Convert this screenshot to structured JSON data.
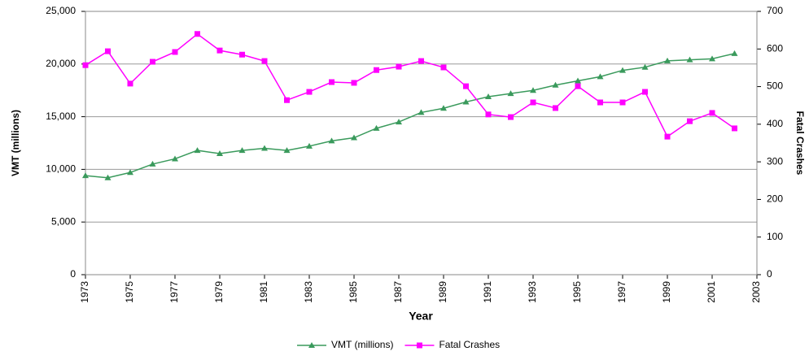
{
  "chart_data": {
    "type": "line",
    "x": [
      1973,
      1974,
      1975,
      1976,
      1977,
      1978,
      1979,
      1980,
      1981,
      1982,
      1983,
      1984,
      1985,
      1986,
      1987,
      1988,
      1989,
      1990,
      1991,
      1992,
      1993,
      1994,
      1995,
      1996,
      1997,
      1998,
      1999,
      2000,
      2001,
      2002
    ],
    "series": [
      {
        "name": "VMT (millions)",
        "color": "#3a9a5c",
        "marker": "triangle",
        "values": [
          9400,
          9200,
          9700,
          10500,
          11000,
          11800,
          11500,
          11800,
          12000,
          11800,
          12200,
          12700,
          13000,
          13900,
          14500,
          15400,
          15800,
          16400,
          16900,
          17200,
          17500,
          18000,
          18400,
          18800,
          19400,
          19700,
          20300,
          20400,
          20500,
          21000
        ]
      },
      {
        "name": "Fatal Crashes",
        "color": "#ff00ff",
        "marker": "square",
        "axis": "y2",
        "values": [
          557,
          594,
          508,
          566,
          592,
          640,
          596,
          585,
          568,
          464,
          486,
          512,
          510,
          544,
          553,
          568,
          551,
          501,
          426,
          419,
          458,
          443,
          501,
          458,
          458,
          486,
          367,
          408,
          430,
          389
        ]
      }
    ],
    "xlabel": "Year",
    "ylabel": "VMT (millions)",
    "y2label": "Fatal Crashes",
    "xlim": [
      1973,
      2003
    ],
    "xticks": [
      1973,
      1975,
      1977,
      1979,
      1981,
      1983,
      1985,
      1987,
      1989,
      1991,
      1993,
      1995,
      1997,
      1999,
      2001,
      2003
    ],
    "ylim": [
      0,
      25000
    ],
    "yticks": [
      0,
      {
        "value": 5000,
        "label": "5,000"
      },
      {
        "value": 10000,
        "label": "10,000"
      },
      {
        "value": 15000,
        "label": "15,000"
      },
      {
        "value": 20000,
        "label": "20,000"
      },
      {
        "value": 25000,
        "label": "25,000"
      }
    ],
    "y2lim": [
      0,
      700
    ],
    "y2ticks": [
      0,
      100,
      200,
      300,
      400,
      500,
      600,
      700
    ],
    "grid": true,
    "legend": "bottom"
  }
}
